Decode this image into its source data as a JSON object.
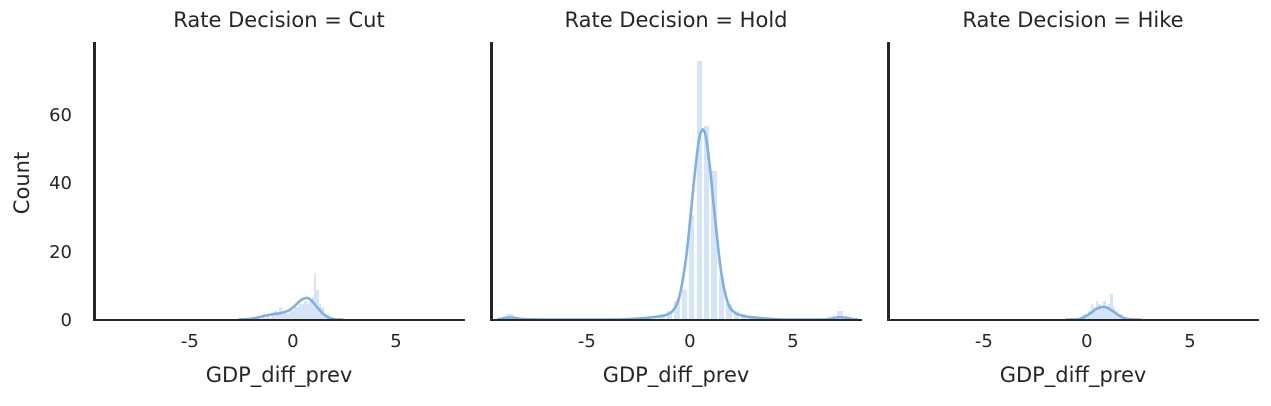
{
  "chart_data": {
    "type": "histogram",
    "title": "",
    "ylabel": "Count",
    "xlabel": "GDP_diff_prev",
    "legend": null,
    "grid": false,
    "xlim": [
      -9.7,
      8.35
    ],
    "ylim": [
      0,
      81.6
    ],
    "xticks": [
      -5,
      0,
      5
    ],
    "yticks": [
      0,
      20,
      40,
      60
    ],
    "xtick_labels": [
      "-5",
      "0",
      "5"
    ],
    "ytick_labels": [
      "0",
      "20",
      "40",
      "60"
    ],
    "colors": {
      "kde_line": "#7EB0E5",
      "bar_fill": "rgba(125,175,230,0.32)",
      "bar_edge": "rgba(255,255,255,0.9)",
      "spine": "#262626",
      "text": "#262626"
    },
    "facets": [
      {
        "title": "Rate Decision = Cut",
        "xlabel": "GDP_diff_prev",
        "bin_width": 0.12,
        "bars": [
          [
            -2.28,
            1
          ],
          [
            -2.16,
            1
          ],
          [
            -1.92,
            1
          ],
          [
            -1.68,
            1
          ],
          [
            -1.44,
            2
          ],
          [
            -1.32,
            1
          ],
          [
            -1.2,
            2
          ],
          [
            -1.08,
            1
          ],
          [
            -0.96,
            2
          ],
          [
            -0.84,
            3
          ],
          [
            -0.72,
            2
          ],
          [
            -0.6,
            4
          ],
          [
            -0.48,
            2
          ],
          [
            -0.36,
            3
          ],
          [
            -0.24,
            2
          ],
          [
            -0.12,
            3
          ],
          [
            0,
            3
          ],
          [
            0.12,
            4
          ],
          [
            0.24,
            4
          ],
          [
            0.36,
            5
          ],
          [
            0.48,
            5
          ],
          [
            0.6,
            6
          ],
          [
            0.72,
            5
          ],
          [
            0.84,
            6
          ],
          [
            0.96,
            7
          ],
          [
            1.08,
            14
          ],
          [
            1.2,
            9
          ],
          [
            1.32,
            5
          ],
          [
            1.44,
            4
          ],
          [
            1.56,
            2
          ],
          [
            1.68,
            2
          ],
          [
            1.8,
            1
          ]
        ],
        "kde": [
          [
            -2.6,
            0.3
          ],
          [
            -2.2,
            0.55
          ],
          [
            -1.8,
            0.9
          ],
          [
            -1.4,
            1.45
          ],
          [
            -1.0,
            1.95
          ],
          [
            -0.6,
            2.3
          ],
          [
            -0.2,
            3.1
          ],
          [
            0,
            3.95
          ],
          [
            0.2,
            5.05
          ],
          [
            0.4,
            6.15
          ],
          [
            0.68,
            6.75
          ],
          [
            0.9,
            6.0
          ],
          [
            1.2,
            3.85
          ],
          [
            1.5,
            1.9
          ],
          [
            1.8,
            0.85
          ],
          [
            2.1,
            0.45
          ],
          [
            2.4,
            0.25
          ]
        ]
      },
      {
        "title": "Rate Decision = Hold",
        "xlabel": "GDP_diff_prev",
        "bin_width": 0.36,
        "bars": [
          [
            -8.73,
            2
          ],
          [
            -2.43,
            1
          ],
          [
            -1.35,
            2
          ],
          [
            -0.99,
            3
          ],
          [
            -0.63,
            6
          ],
          [
            -0.27,
            9
          ],
          [
            0.09,
            31
          ],
          [
            0.45,
            76
          ],
          [
            0.81,
            57
          ],
          [
            1.17,
            44
          ],
          [
            1.53,
            13
          ],
          [
            1.89,
            5
          ],
          [
            2.25,
            3
          ],
          [
            2.61,
            2
          ],
          [
            2.97,
            1
          ],
          [
            7.29,
            3
          ]
        ],
        "kde": [
          [
            -9.3,
            0.5
          ],
          [
            -8.7,
            1.05
          ],
          [
            -8.1,
            0.55
          ],
          [
            -7,
            0.25
          ],
          [
            -5,
            0.3
          ],
          [
            -3.5,
            0.4
          ],
          [
            -2.4,
            0.75
          ],
          [
            -1.8,
            1.1
          ],
          [
            -1.2,
            1.7
          ],
          [
            -0.8,
            3.2
          ],
          [
            -0.5,
            7.4
          ],
          [
            -0.2,
            17.8
          ],
          [
            0,
            28.8
          ],
          [
            0.2,
            41
          ],
          [
            0.4,
            51.5
          ],
          [
            0.5,
            54.7
          ],
          [
            0.62,
            56
          ],
          [
            0.72,
            55.1
          ],
          [
            0.8,
            53
          ],
          [
            1.0,
            43.4
          ],
          [
            1.2,
            31.2
          ],
          [
            1.5,
            15.1
          ],
          [
            1.8,
            6.1
          ],
          [
            2.1,
            2.8
          ],
          [
            2.5,
            1.6
          ],
          [
            3.0,
            1.1
          ],
          [
            3.6,
            0.75
          ],
          [
            4.5,
            0.4
          ],
          [
            5.5,
            0.3
          ],
          [
            6.5,
            0.4
          ],
          [
            7.3,
            1.1
          ],
          [
            7.9,
            0.55
          ],
          [
            8.1,
            0.35
          ]
        ]
      },
      {
        "title": "Rate Decision = Hike",
        "xlabel": "GDP_diff_prev",
        "bin_width": 0.12,
        "bars": [
          [
            -0.36,
            1
          ],
          [
            -0.24,
            1
          ],
          [
            -0.12,
            2
          ],
          [
            0,
            2
          ],
          [
            0.12,
            3
          ],
          [
            0.24,
            5
          ],
          [
            0.36,
            4
          ],
          [
            0.48,
            6
          ],
          [
            0.6,
            5
          ],
          [
            0.72,
            4
          ],
          [
            0.84,
            6
          ],
          [
            0.96,
            4
          ],
          [
            1.08,
            5
          ],
          [
            1.2,
            8
          ],
          [
            1.32,
            4
          ],
          [
            1.44,
            3
          ],
          [
            1.56,
            2
          ],
          [
            1.68,
            2
          ],
          [
            1.8,
            1
          ],
          [
            1.92,
            1
          ],
          [
            2.04,
            1
          ]
        ],
        "kde": [
          [
            -1.0,
            0.12
          ],
          [
            -0.7,
            0.25
          ],
          [
            -0.4,
            0.55
          ],
          [
            -0.1,
            1.25
          ],
          [
            0.2,
            2.4
          ],
          [
            0.5,
            3.65
          ],
          [
            0.78,
            4.15
          ],
          [
            1.0,
            3.85
          ],
          [
            1.3,
            2.7
          ],
          [
            1.6,
            1.45
          ],
          [
            1.9,
            0.65
          ],
          [
            2.2,
            0.3
          ],
          [
            2.6,
            0.12
          ]
        ]
      }
    ]
  }
}
